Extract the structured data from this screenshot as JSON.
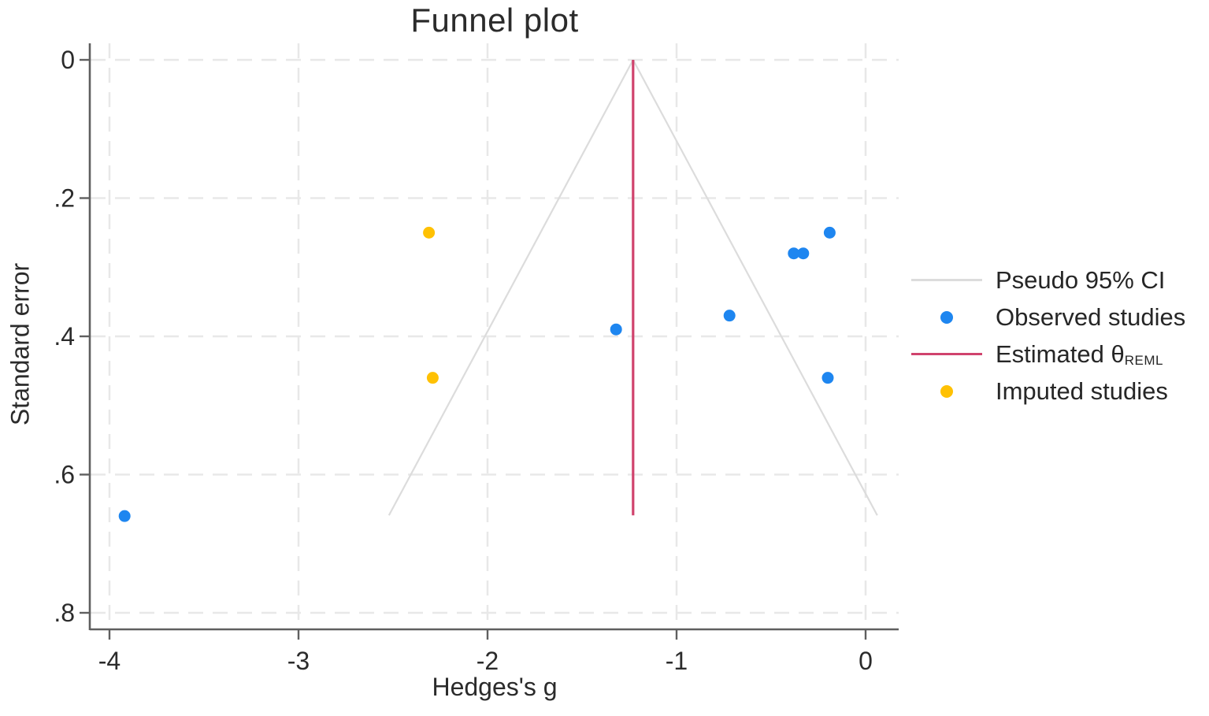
{
  "title": "Funnel plot",
  "chart_data": {
    "type": "scatter",
    "title": "Funnel plot",
    "xlabel": "Hedges's g",
    "ylabel": "Standard error",
    "x_ticks": [
      -4,
      -3,
      -2,
      -1,
      0
    ],
    "x_tick_labels": [
      "-4",
      "-3",
      "-2",
      "-1",
      "0"
    ],
    "y_ticks": [
      0,
      0.2,
      0.4,
      0.6,
      0.8
    ],
    "y_tick_labels": [
      "0",
      ".2",
      ".4",
      ".6",
      ".8"
    ],
    "xlim": [
      -4.1,
      0.17
    ],
    "ylim": [
      0,
      0.85
    ],
    "y_inverted": true,
    "grid": "both-dashed",
    "estimated_theta_reml": -1.23,
    "ci_multiplier": 1.96,
    "funnel_max_se": 0.659,
    "series": [
      {
        "name": "Observed studies",
        "marker": "dot",
        "color": "#1e86f0",
        "points": [
          {
            "g": -3.92,
            "se": 0.66
          },
          {
            "g": -1.32,
            "se": 0.39
          },
          {
            "g": -0.72,
            "se": 0.37
          },
          {
            "g": -0.38,
            "se": 0.28
          },
          {
            "g": -0.33,
            "se": 0.28
          },
          {
            "g": -0.2,
            "se": 0.46
          },
          {
            "g": -0.19,
            "se": 0.25
          }
        ]
      },
      {
        "name": "Imputed studies",
        "marker": "dot",
        "color": "#ffc103",
        "points": [
          {
            "g": -2.31,
            "se": 0.25
          },
          {
            "g": -2.29,
            "se": 0.46
          }
        ]
      }
    ],
    "funnel_color": "#dcdcdc",
    "theta_line_color": "#d0436d",
    "gridline_color": "#e8e8e8",
    "axis_color": "#5f5f5f",
    "legend_position": "right-outside",
    "legend": [
      {
        "label": "Pseudo 95% CI",
        "marker": "line",
        "color": "#dcdcdc"
      },
      {
        "label": "Observed studies",
        "marker": "dot",
        "color": "#1e86f0"
      },
      {
        "label": "Estimated θ",
        "subscript": "REML",
        "marker": "line",
        "color": "#d0436d"
      },
      {
        "label": "Imputed studies",
        "marker": "dot",
        "color": "#ffc103"
      }
    ]
  }
}
